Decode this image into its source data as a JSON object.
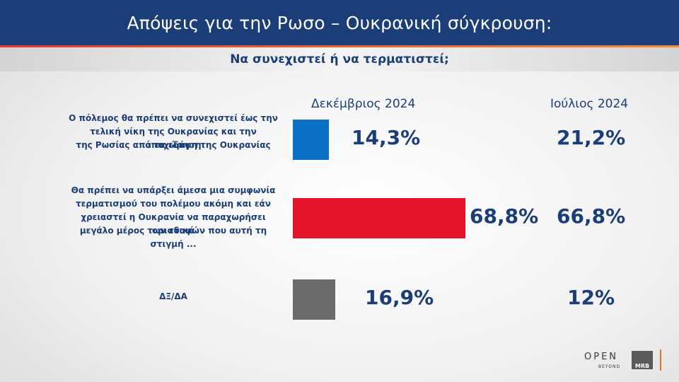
{
  "header": {
    "title": "Απόψεις για την Ρωσο – Ουκρανική σύγκρουση:",
    "subtitle": "Να συνεχιστεί ή να τερματιστεί;"
  },
  "chart_data": {
    "type": "bar",
    "orientation": "horizontal",
    "title": "Απόψεις για την Ρωσο – Ουκρανική σύγκρουση:",
    "subtitle": "Να συνεχιστεί ή να τερματιστεί;",
    "categories": [
      "Ο πόλεμος θα πρέπει να συνεχιστεί έως την τελική νίκη της Ουκρανίας και την αποχώρηση της Ρωσίας από τα εδάφη της Ουκρανίας",
      "Θα πρέπει να υπάρξει άμεσα μια συμφωνία τερματισμού του πολέμου ακόμη και εάν χρειαστεί η Ουκρανία να παραχωρήσει οριστικά μεγάλο μέρος των εδαφών που αυτή τη στιγμή ...",
      "ΔΞ/ΔΑ"
    ],
    "category_lines": [
      [
        "Ο πόλεμος θα πρέπει να συνεχιστεί έως την",
        "τελική νίκη της Ουκρανίας και την αποχώρηση",
        "της Ρωσίας από τα εδάφη της Ουκρανίας"
      ],
      [
        "Θα πρέπει να υπάρξει άμεσα μια συμφωνία",
        "τερματισμού του πολέμου ακόμη και εάν",
        "χρειαστεί η Ουκρανία να παραχωρήσει οριστικά",
        "μεγάλο μέρος των εδαφών που αυτή τη στιγμή ..."
      ],
      [
        "ΔΞ/ΔΑ"
      ]
    ],
    "series": [
      {
        "name": "Δεκέμβριος 2024",
        "values": [
          14.3,
          68.8,
          16.9
        ],
        "labels": [
          "14,3%",
          "68,8%",
          "16,9%"
        ],
        "colors": [
          "#0b6fc4",
          "#e3132b",
          "#6b6b6b"
        ]
      },
      {
        "name": "Ιούλιος 2024",
        "values": [
          21.2,
          66.8,
          12
        ],
        "labels": [
          "21,2%",
          "66,8%",
          "12%"
        ]
      }
    ],
    "xlim": [
      0,
      100
    ],
    "grid": false
  },
  "brand": {
    "open_text": "OPEN",
    "beyond_text": "BEYOND",
    "mrb_text": "MRB"
  },
  "colors": {
    "header_bg": "#1b3d78",
    "text": "#1b3d78",
    "accent_line": "#e23b2f"
  }
}
